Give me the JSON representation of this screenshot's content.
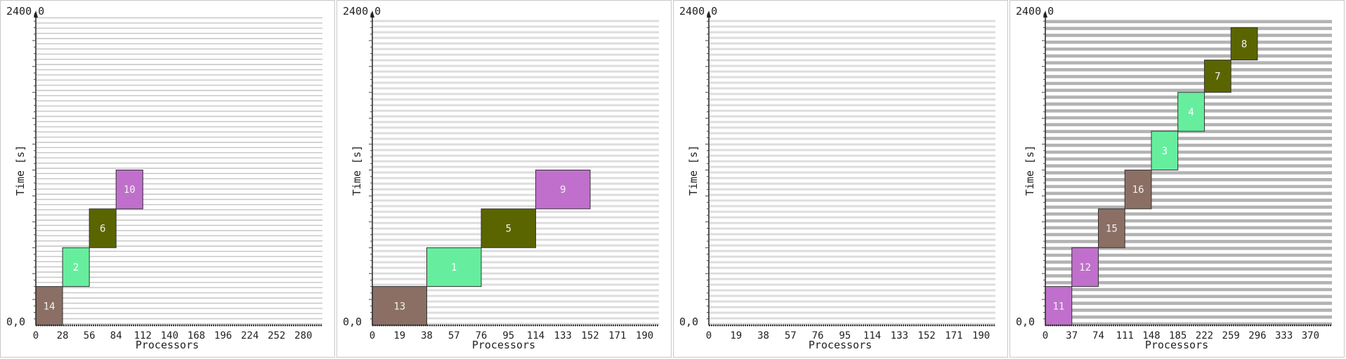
{
  "chart_data": [
    {
      "type": "gantt",
      "xlabel": "Processors",
      "ylabel": "Time [s]",
      "y_min_label": "0,0",
      "y_max_label": "2400,0",
      "ylim": [
        0,
        2400
      ],
      "xlim": [
        0,
        300
      ],
      "xticks": [
        0,
        28,
        56,
        84,
        112,
        140,
        168,
        196,
        224,
        252,
        280
      ],
      "grid_style": "fine",
      "tasks": [
        {
          "label": "14",
          "x0": 0,
          "x1": 28,
          "y0": 0,
          "y1": 300,
          "color": "#8b6f65"
        },
        {
          "label": "2",
          "x0": 28,
          "x1": 56,
          "y0": 300,
          "y1": 600,
          "color": "#66ee9e"
        },
        {
          "label": "6",
          "x0": 56,
          "x1": 84,
          "y0": 600,
          "y1": 900,
          "color": "#5b6500"
        },
        {
          "label": "10",
          "x0": 84,
          "x1": 112,
          "y0": 900,
          "y1": 1200,
          "color": "#c070cc"
        }
      ]
    },
    {
      "type": "gantt",
      "xlabel": "Processors",
      "ylabel": "Time [s]",
      "y_min_label": "0,0",
      "y_max_label": "2400,0",
      "ylim": [
        0,
        2400
      ],
      "xlim": [
        0,
        200
      ],
      "xticks": [
        0,
        19,
        38,
        57,
        76,
        95,
        114,
        133,
        152,
        171,
        190
      ],
      "grid_style": "medium",
      "tasks": [
        {
          "label": "13",
          "x0": 0,
          "x1": 38,
          "y0": 0,
          "y1": 300,
          "color": "#8b6f65"
        },
        {
          "label": "1",
          "x0": 38,
          "x1": 76,
          "y0": 300,
          "y1": 600,
          "color": "#66ee9e"
        },
        {
          "label": "5",
          "x0": 76,
          "x1": 114,
          "y0": 600,
          "y1": 900,
          "color": "#5b6500"
        },
        {
          "label": "9",
          "x0": 114,
          "x1": 152,
          "y0": 900,
          "y1": 1200,
          "color": "#c070cc"
        }
      ]
    },
    {
      "type": "gantt",
      "xlabel": "Processors",
      "ylabel": "Time [s]",
      "y_min_label": "0,0",
      "y_max_label": "2400,0",
      "ylim": [
        0,
        2400
      ],
      "xlim": [
        0,
        200
      ],
      "xticks": [
        0,
        19,
        38,
        57,
        76,
        95,
        114,
        133,
        152,
        171,
        190
      ],
      "grid_style": "medium",
      "tasks": []
    },
    {
      "type": "gantt",
      "xlabel": "Processors",
      "ylabel": "Time [s]",
      "y_min_label": "0,0",
      "y_max_label": "2400,0",
      "ylim": [
        0,
        2400
      ],
      "xlim": [
        0,
        400
      ],
      "xticks": [
        0,
        37,
        74,
        111,
        148,
        185,
        222,
        259,
        296,
        333,
        370
      ],
      "grid_style": "coarse",
      "tasks": [
        {
          "label": "11",
          "x0": 0,
          "x1": 37,
          "y0": 0,
          "y1": 300,
          "color": "#c070cc"
        },
        {
          "label": "12",
          "x0": 37,
          "x1": 74,
          "y0": 300,
          "y1": 600,
          "color": "#c070cc"
        },
        {
          "label": "15",
          "x0": 74,
          "x1": 111,
          "y0": 600,
          "y1": 900,
          "color": "#8b6f65"
        },
        {
          "label": "16",
          "x0": 111,
          "x1": 148,
          "y0": 900,
          "y1": 1200,
          "color": "#8b6f65"
        },
        {
          "label": "3",
          "x0": 148,
          "x1": 185,
          "y0": 1200,
          "y1": 1500,
          "color": "#66ee9e"
        },
        {
          "label": "4",
          "x0": 185,
          "x1": 222,
          "y0": 1500,
          "y1": 1800,
          "color": "#66ee9e"
        },
        {
          "label": "7",
          "x0": 222,
          "x1": 259,
          "y0": 1800,
          "y1": 2050,
          "color": "#5b6500"
        },
        {
          "label": "8",
          "x0": 259,
          "x1": 296,
          "y0": 2050,
          "y1": 2300,
          "color": "#5b6500"
        }
      ]
    }
  ]
}
